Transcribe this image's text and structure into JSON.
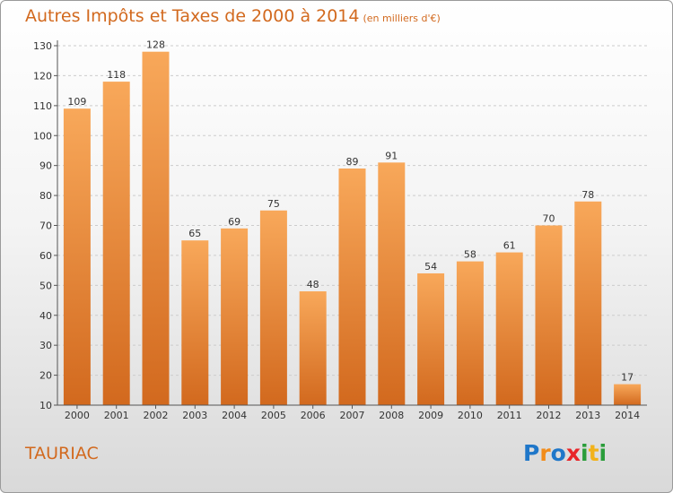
{
  "title": "Autres Impôts et Taxes de 2000 à 2014",
  "unit_label": "(en milliers d'€)",
  "commune": "TAURIAC",
  "logo": {
    "text": "Proxiti",
    "letters": [
      {
        "char": "P",
        "color": "#1f77c9"
      },
      {
        "char": "r",
        "color": "#f28c1a"
      },
      {
        "char": "o",
        "color": "#1f77c9"
      },
      {
        "char": "x",
        "color": "#e8262a"
      },
      {
        "char": "i",
        "color": "#2a9d3a"
      },
      {
        "char": "t",
        "color": "#f2b21a"
      },
      {
        "char": "i",
        "color": "#2a9d3a"
      }
    ]
  },
  "colors": {
    "accent": "#d2691e",
    "bar_light": "#f8a85a",
    "bar_dark": "#d2691e",
    "axis": "#555555",
    "grid": "#cccccc"
  },
  "chart_data": {
    "type": "bar",
    "title": "Autres Impôts et Taxes de 2000 à 2014",
    "subtitle": "(en milliers d'€)",
    "categories": [
      "2000",
      "2001",
      "2002",
      "2003",
      "2004",
      "2005",
      "2006",
      "2007",
      "2008",
      "2009",
      "2010",
      "2011",
      "2012",
      "2013",
      "2014"
    ],
    "values": [
      109,
      118,
      128,
      65,
      69,
      75,
      48,
      89,
      91,
      54,
      58,
      61,
      70,
      78,
      17
    ],
    "ylim": [
      10,
      130
    ],
    "yticks": [
      10,
      20,
      30,
      40,
      50,
      60,
      70,
      80,
      90,
      100,
      110,
      120,
      130
    ],
    "grid": true,
    "xlabel": "",
    "ylabel": ""
  }
}
